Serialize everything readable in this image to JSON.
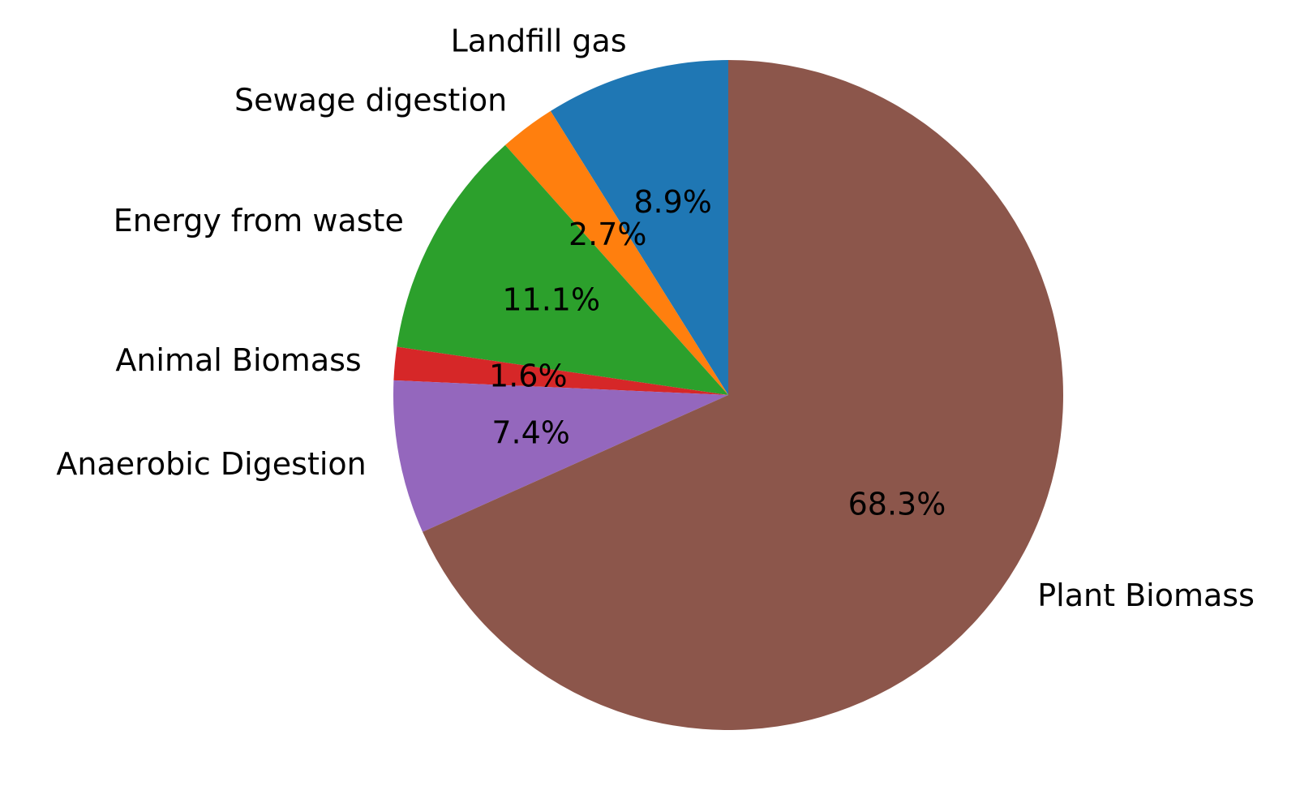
{
  "chart_data": {
    "type": "pie",
    "categories": [
      "Landfill gas",
      "Sewage digestion",
      "Energy from waste",
      "Animal Biomass",
      "Anaerobic Digestion",
      "Plant Biomass"
    ],
    "values": [
      8.9,
      2.7,
      11.1,
      1.6,
      7.4,
      68.3
    ],
    "percent_labels": [
      "8.9%",
      "2.7%",
      "11.1%",
      "1.6%",
      "7.4%",
      "68.3%"
    ],
    "colors": [
      "#1f77b4",
      "#ff7f0e",
      "#2ca02c",
      "#d62728",
      "#9467bd",
      "#8c564b"
    ],
    "start_angle_deg": 90,
    "direction": "counterclockwise",
    "title": "",
    "legend": "none"
  }
}
